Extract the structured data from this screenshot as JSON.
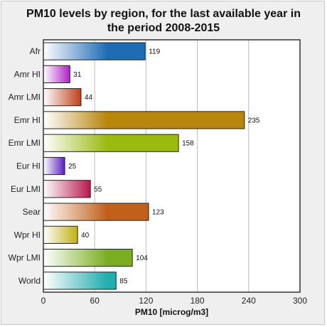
{
  "chart_data": {
    "type": "bar",
    "orientation": "horizontal",
    "title": "PM10 levels by region, for the last available year in the period 2008-2015",
    "title_lines": [
      "PM10 levels by region, for the last available year in",
      "the period 2008-2015"
    ],
    "xlabel": "PM10 [microg/m3]",
    "ylabel": "",
    "xlim": [
      0,
      300
    ],
    "xticks": [
      0,
      60,
      120,
      180,
      240,
      300
    ],
    "grid": "vertical",
    "legend": "none",
    "categories": [
      "Afr",
      "Amr HI",
      "Amr LMI",
      "Emr HI",
      "Emr LMI",
      "Eur HI",
      "Eur LMI",
      "Sear",
      "Wpr HI",
      "Wpr LMI",
      "World"
    ],
    "values": [
      119,
      31,
      44,
      235,
      158,
      25,
      55,
      123,
      40,
      104,
      85
    ],
    "colors": [
      "#1f6cb4",
      "#b020c8",
      "#c0401a",
      "#b8860b",
      "#9aba10",
      "#5a1ec0",
      "#b8184e",
      "#c0601a",
      "#c0b010",
      "#7aae20",
      "#20aeae"
    ]
  }
}
